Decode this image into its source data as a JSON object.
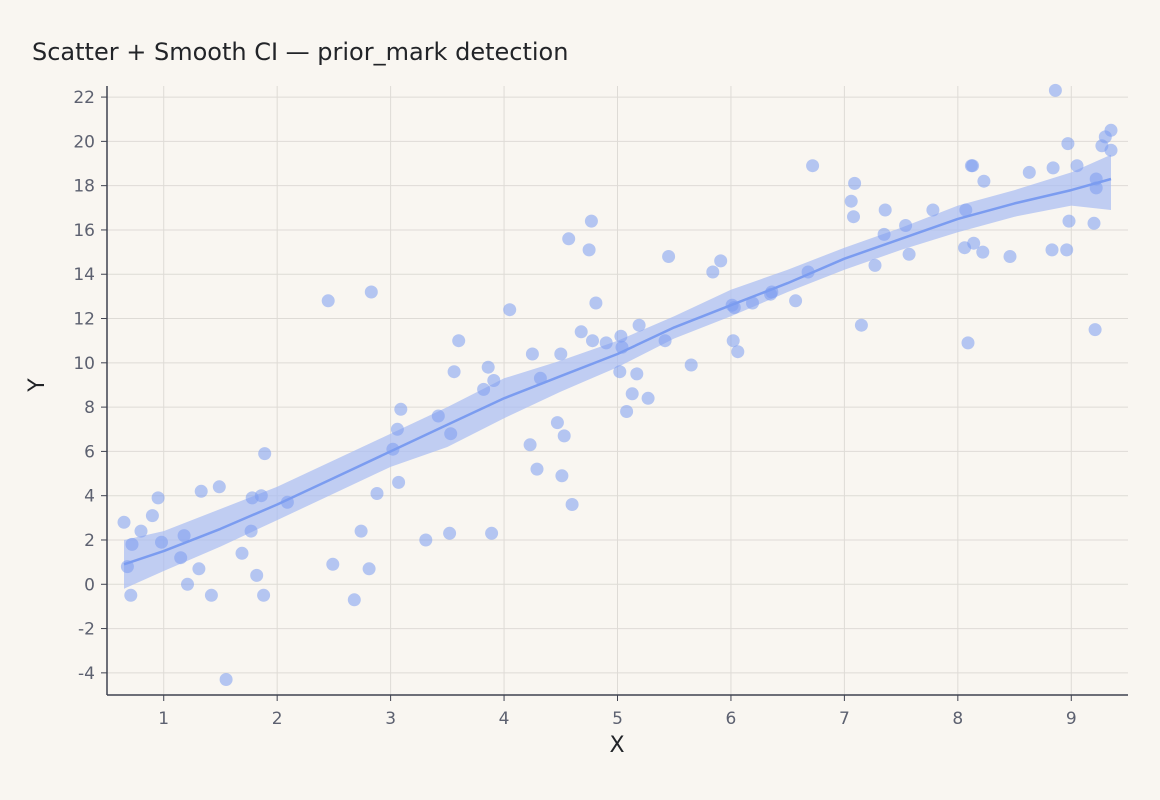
{
  "chart_data": {
    "type": "scatter",
    "title": "Scatter + Smooth CI — prior_mark detection",
    "xlabel": "X",
    "ylabel": "Y",
    "xlim": [
      0.5,
      9.5
    ],
    "ylim": [
      -5,
      22.5
    ],
    "xticks": [
      1,
      2,
      3,
      4,
      5,
      6,
      7,
      8,
      9
    ],
    "yticks": [
      -4,
      -2,
      0,
      2,
      4,
      6,
      8,
      10,
      12,
      14,
      16,
      18,
      20,
      22
    ],
    "grid": true,
    "legend": "none",
    "colors": {
      "points": "#7b9cf0",
      "line": "#7b9cf0",
      "band": "#a9bdf3",
      "grid": "#dedbd6",
      "axis": "#3f4250",
      "background": "#f9f6f1"
    },
    "points": [
      [
        0.65,
        2.8
      ],
      [
        0.68,
        0.8
      ],
      [
        0.72,
        1.8
      ],
      [
        0.71,
        -0.5
      ],
      [
        0.8,
        2.4
      ],
      [
        0.9,
        3.1
      ],
      [
        0.95,
        3.9
      ],
      [
        0.98,
        1.9
      ],
      [
        1.15,
        1.2
      ],
      [
        1.18,
        2.2
      ],
      [
        1.21,
        0.0
      ],
      [
        1.31,
        0.7
      ],
      [
        1.33,
        4.2
      ],
      [
        1.42,
        -0.5
      ],
      [
        1.49,
        4.4
      ],
      [
        1.55,
        -4.3
      ],
      [
        1.69,
        1.4
      ],
      [
        1.77,
        2.4
      ],
      [
        1.78,
        3.9
      ],
      [
        1.82,
        0.4
      ],
      [
        1.86,
        4.0
      ],
      [
        1.88,
        -0.5
      ],
      [
        1.89,
        5.9
      ],
      [
        2.09,
        3.7
      ],
      [
        2.45,
        12.8
      ],
      [
        2.49,
        0.9
      ],
      [
        2.68,
        -0.7
      ],
      [
        2.74,
        2.4
      ],
      [
        2.81,
        0.7
      ],
      [
        2.83,
        13.2
      ],
      [
        2.88,
        4.1
      ],
      [
        3.02,
        6.1
      ],
      [
        3.06,
        7.0
      ],
      [
        3.07,
        4.6
      ],
      [
        3.09,
        7.9
      ],
      [
        3.31,
        2.0
      ],
      [
        3.42,
        7.6
      ],
      [
        3.52,
        2.3
      ],
      [
        3.53,
        6.8
      ],
      [
        3.56,
        9.6
      ],
      [
        3.6,
        11.0
      ],
      [
        3.82,
        8.8
      ],
      [
        3.86,
        9.8
      ],
      [
        3.89,
        2.3
      ],
      [
        3.91,
        9.2
      ],
      [
        4.05,
        12.4
      ],
      [
        4.23,
        6.3
      ],
      [
        4.25,
        10.4
      ],
      [
        4.29,
        5.2
      ],
      [
        4.32,
        9.3
      ],
      [
        4.47,
        7.3
      ],
      [
        4.5,
        10.4
      ],
      [
        4.51,
        4.9
      ],
      [
        4.53,
        6.7
      ],
      [
        4.57,
        15.6
      ],
      [
        4.6,
        3.6
      ],
      [
        4.68,
        11.4
      ],
      [
        4.75,
        15.1
      ],
      [
        4.77,
        16.4
      ],
      [
        4.78,
        11.0
      ],
      [
        4.81,
        12.7
      ],
      [
        4.9,
        10.9
      ],
      [
        5.02,
        9.6
      ],
      [
        5.03,
        11.2
      ],
      [
        5.04,
        10.7
      ],
      [
        5.08,
        7.8
      ],
      [
        5.13,
        8.6
      ],
      [
        5.17,
        9.5
      ],
      [
        5.19,
        11.7
      ],
      [
        5.27,
        8.4
      ],
      [
        5.42,
        11.0
      ],
      [
        5.45,
        14.8
      ],
      [
        5.65,
        9.9
      ],
      [
        5.84,
        14.1
      ],
      [
        5.91,
        14.6
      ],
      [
        6.01,
        12.6
      ],
      [
        6.02,
        11.0
      ],
      [
        6.03,
        12.5
      ],
      [
        6.06,
        10.5
      ],
      [
        6.19,
        12.7
      ],
      [
        6.35,
        13.1
      ],
      [
        6.36,
        13.2
      ],
      [
        6.57,
        12.8
      ],
      [
        6.68,
        14.1
      ],
      [
        6.72,
        18.9
      ],
      [
        7.06,
        17.3
      ],
      [
        7.08,
        16.6
      ],
      [
        7.09,
        18.1
      ],
      [
        7.15,
        11.7
      ],
      [
        7.27,
        14.4
      ],
      [
        7.35,
        15.8
      ],
      [
        7.36,
        16.9
      ],
      [
        7.54,
        16.2
      ],
      [
        7.57,
        14.9
      ],
      [
        7.78,
        16.9
      ],
      [
        8.06,
        15.2
      ],
      [
        8.07,
        16.9
      ],
      [
        8.09,
        10.9
      ],
      [
        8.12,
        18.9
      ],
      [
        8.13,
        18.9
      ],
      [
        8.14,
        15.4
      ],
      [
        8.22,
        15.0
      ],
      [
        8.23,
        18.2
      ],
      [
        8.46,
        14.8
      ],
      [
        8.63,
        18.6
      ],
      [
        8.83,
        15.1
      ],
      [
        8.84,
        18.8
      ],
      [
        8.86,
        22.3
      ],
      [
        8.96,
        15.1
      ],
      [
        8.97,
        19.9
      ],
      [
        8.98,
        16.4
      ],
      [
        9.05,
        18.9
      ],
      [
        9.2,
        16.3
      ],
      [
        9.21,
        11.5
      ],
      [
        9.22,
        17.9
      ],
      [
        9.22,
        18.3
      ],
      [
        9.27,
        19.8
      ],
      [
        9.3,
        20.2
      ],
      [
        9.35,
        19.6
      ],
      [
        9.35,
        20.5
      ]
    ],
    "smooth_line": {
      "x": [
        0.65,
        1.0,
        1.5,
        2.0,
        2.5,
        3.0,
        3.5,
        4.0,
        4.5,
        5.0,
        5.5,
        6.0,
        6.5,
        7.0,
        7.5,
        8.0,
        8.5,
        9.0,
        9.35
      ],
      "y": [
        0.9,
        1.5,
        2.5,
        3.6,
        4.8,
        6.0,
        7.2,
        8.4,
        9.4,
        10.4,
        11.6,
        12.6,
        13.6,
        14.7,
        15.6,
        16.5,
        17.2,
        17.8,
        18.3
      ]
    },
    "ci_band": {
      "x": [
        0.65,
        1.0,
        1.5,
        2.0,
        2.5,
        3.0,
        3.5,
        4.0,
        4.5,
        5.0,
        5.5,
        6.0,
        6.5,
        7.0,
        7.5,
        8.0,
        8.5,
        9.0,
        9.35
      ],
      "lower": [
        -0.2,
        0.6,
        1.7,
        2.9,
        4.1,
        5.3,
        6.2,
        7.5,
        8.7,
        9.8,
        11.1,
        12.1,
        13.2,
        14.2,
        15.1,
        15.9,
        16.6,
        17.1,
        16.9
      ],
      "upper": [
        2.0,
        2.4,
        3.4,
        4.4,
        5.6,
        6.8,
        8.0,
        9.3,
        10.1,
        11.0,
        12.1,
        13.3,
        14.2,
        15.2,
        16.1,
        17.1,
        17.8,
        18.6,
        19.4
      ]
    }
  }
}
